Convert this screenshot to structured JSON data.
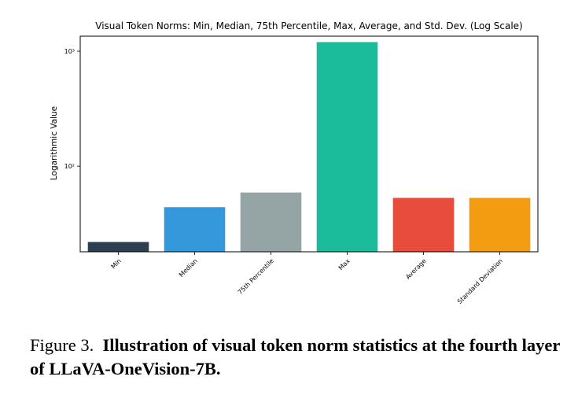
{
  "chart_data": {
    "type": "bar",
    "title": "Visual Token Norms: Min, Median, 75th Percentile, Max, Average, and Std. Dev. (Log Scale)",
    "xlabel": "",
    "ylabel": "Logarithmic Value",
    "yscale": "log",
    "ylim": [
      18,
      1350
    ],
    "yticks": [
      {
        "value": 100,
        "label": "10²"
      },
      {
        "value": 1000,
        "label": "10³"
      }
    ],
    "grid": false,
    "categories": [
      "Min",
      "Median",
      "75th Percentile",
      "Max",
      "Average",
      "Standard Deviation"
    ],
    "values": [
      21.9,
      44,
      59,
      1200,
      53,
      53
    ],
    "colors": [
      "#2c3e50",
      "#3498db",
      "#95a5a6",
      "#1abc9c",
      "#e74c3c",
      "#f39c12"
    ]
  },
  "caption": {
    "lead": "Figure 3.",
    "body": "Illustration of visual token norm statistics at the fourth layer of LLaVA-OneVision-7B."
  }
}
